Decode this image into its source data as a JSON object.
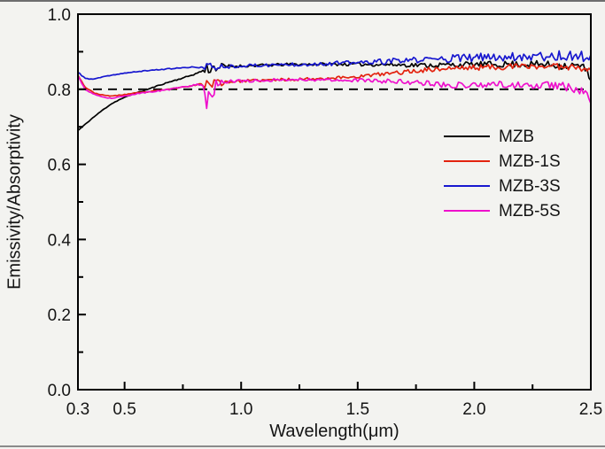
{
  "figure": {
    "background": "#f3f3f0",
    "frame_color": "#000000",
    "tick_label_color": "#141414"
  },
  "chart_data": {
    "type": "line",
    "title": "",
    "xlabel": "Wavelength(μm)",
    "ylabel": "Emissivity/Absorptivity",
    "xlim": [
      0.3,
      2.5
    ],
    "ylim": [
      0.0,
      1.0
    ],
    "grid": false,
    "legend_position": "middle-right",
    "x_ticks": {
      "major": [
        0.5,
        1.0,
        1.5,
        2.0,
        2.5
      ],
      "minor": [
        0.75,
        1.25,
        1.75,
        2.25
      ],
      "labels": [
        [
          0.3,
          "0.3"
        ],
        [
          0.5,
          "0.5"
        ],
        [
          1.0,
          "1.0"
        ],
        [
          1.5,
          "1.5"
        ],
        [
          2.0,
          "2.0"
        ],
        [
          2.5,
          "2.5"
        ]
      ]
    },
    "y_ticks": {
      "major": [
        0.0,
        0.2,
        0.4,
        0.6,
        0.8,
        1.0
      ],
      "minor": [
        0.1,
        0.3,
        0.5,
        0.7,
        0.9
      ],
      "labels": [
        [
          0.0,
          "0.0"
        ],
        [
          0.2,
          "0.2"
        ],
        [
          0.4,
          "0.4"
        ],
        [
          0.6,
          "0.6"
        ],
        [
          0.8,
          "0.8"
        ],
        [
          1.0,
          "1.0"
        ]
      ]
    },
    "reference_line": {
      "y": 0.8,
      "style": "dashed",
      "color": "#000000"
    },
    "series": [
      {
        "name": "MZB",
        "color": "#000000",
        "seed": 11,
        "base": [
          [
            0.3,
            0.69
          ],
          [
            0.33,
            0.706
          ],
          [
            0.36,
            0.722
          ],
          [
            0.4,
            0.742
          ],
          [
            0.44,
            0.76
          ],
          [
            0.48,
            0.773
          ],
          [
            0.52,
            0.783
          ],
          [
            0.56,
            0.792
          ],
          [
            0.6,
            0.8
          ],
          [
            0.65,
            0.811
          ],
          [
            0.7,
            0.821
          ],
          [
            0.75,
            0.83
          ],
          [
            0.8,
            0.84
          ],
          [
            0.83,
            0.848
          ],
          [
            0.86,
            0.856
          ],
          [
            0.9,
            0.859
          ],
          [
            1.0,
            0.862
          ],
          [
            1.1,
            0.864
          ],
          [
            1.2,
            0.866
          ],
          [
            1.4,
            0.867
          ],
          [
            1.6,
            0.866
          ],
          [
            1.8,
            0.864
          ],
          [
            2.0,
            0.866
          ],
          [
            2.2,
            0.867
          ],
          [
            2.3,
            0.866
          ],
          [
            2.4,
            0.863
          ],
          [
            2.45,
            0.862
          ],
          [
            2.48,
            0.852
          ],
          [
            2.5,
            0.833
          ]
        ],
        "noise": [
          [
            0.3,
            0.0008
          ],
          [
            0.8,
            0.0015
          ],
          [
            0.832,
            0.002
          ],
          [
            0.845,
            0.022
          ],
          [
            0.87,
            0.014
          ],
          [
            0.92,
            0.01
          ],
          [
            0.96,
            0.0035
          ],
          [
            1.3,
            0.0035
          ],
          [
            1.6,
            0.005
          ],
          [
            1.9,
            0.007
          ],
          [
            2.2,
            0.009
          ],
          [
            2.4,
            0.011
          ],
          [
            2.5,
            0.013
          ]
        ]
      },
      {
        "name": "MZB-1S",
        "color": "#e3230f",
        "seed": 23,
        "base": [
          [
            0.3,
            0.838
          ],
          [
            0.33,
            0.806
          ],
          [
            0.37,
            0.79
          ],
          [
            0.41,
            0.784
          ],
          [
            0.45,
            0.782
          ],
          [
            0.5,
            0.786
          ],
          [
            0.55,
            0.79
          ],
          [
            0.6,
            0.793
          ],
          [
            0.65,
            0.797
          ],
          [
            0.7,
            0.801
          ],
          [
            0.75,
            0.806
          ],
          [
            0.8,
            0.811
          ],
          [
            0.83,
            0.814
          ],
          [
            0.9,
            0.818
          ],
          [
            1.0,
            0.822
          ],
          [
            1.2,
            0.826
          ],
          [
            1.4,
            0.83
          ],
          [
            1.5,
            0.834
          ],
          [
            1.6,
            0.84
          ],
          [
            1.7,
            0.846
          ],
          [
            1.8,
            0.852
          ],
          [
            1.9,
            0.856
          ],
          [
            2.0,
            0.858
          ],
          [
            2.2,
            0.861
          ],
          [
            2.4,
            0.861
          ],
          [
            2.5,
            0.856
          ]
        ],
        "noise": [
          [
            0.3,
            0.0008
          ],
          [
            0.8,
            0.0015
          ],
          [
            0.832,
            0.002
          ],
          [
            0.845,
            0.018
          ],
          [
            0.87,
            0.013
          ],
          [
            0.92,
            0.009
          ],
          [
            0.96,
            0.0035
          ],
          [
            1.3,
            0.004
          ],
          [
            1.6,
            0.005
          ],
          [
            1.9,
            0.007
          ],
          [
            2.2,
            0.008
          ],
          [
            2.5,
            0.01
          ]
        ]
      },
      {
        "name": "MZB-3S",
        "color": "#1717cf",
        "seed": 37,
        "base": [
          [
            0.3,
            0.845
          ],
          [
            0.33,
            0.83
          ],
          [
            0.36,
            0.826
          ],
          [
            0.4,
            0.832
          ],
          [
            0.45,
            0.838
          ],
          [
            0.5,
            0.843
          ],
          [
            0.6,
            0.85
          ],
          [
            0.7,
            0.855
          ],
          [
            0.8,
            0.859
          ],
          [
            0.85,
            0.858
          ],
          [
            0.9,
            0.86
          ],
          [
            1.0,
            0.862
          ],
          [
            1.2,
            0.866
          ],
          [
            1.4,
            0.869
          ],
          [
            1.5,
            0.871
          ],
          [
            1.6,
            0.873
          ],
          [
            1.7,
            0.876
          ],
          [
            1.8,
            0.879
          ],
          [
            1.9,
            0.882
          ],
          [
            2.0,
            0.884
          ],
          [
            2.1,
            0.886
          ],
          [
            2.2,
            0.888
          ],
          [
            2.3,
            0.889
          ],
          [
            2.4,
            0.889
          ],
          [
            2.5,
            0.886
          ]
        ],
        "noise": [
          [
            0.3,
            0.0012
          ],
          [
            0.45,
            0.0008
          ],
          [
            0.8,
            0.0015
          ],
          [
            0.832,
            0.002
          ],
          [
            0.845,
            0.016
          ],
          [
            0.87,
            0.012
          ],
          [
            0.92,
            0.008
          ],
          [
            0.96,
            0.004
          ],
          [
            1.2,
            0.005
          ],
          [
            1.5,
            0.0065
          ],
          [
            1.8,
            0.009
          ],
          [
            2.1,
            0.012
          ],
          [
            2.35,
            0.014
          ],
          [
            2.5,
            0.014
          ]
        ]
      },
      {
        "name": "MZB-5S",
        "color": "#ee10cc",
        "seed": 53,
        "base": [
          [
            0.3,
            0.836
          ],
          [
            0.33,
            0.8
          ],
          [
            0.37,
            0.786
          ],
          [
            0.41,
            0.778
          ],
          [
            0.45,
            0.776
          ],
          [
            0.5,
            0.782
          ],
          [
            0.55,
            0.788
          ],
          [
            0.6,
            0.792
          ],
          [
            0.65,
            0.796
          ],
          [
            0.7,
            0.8
          ],
          [
            0.75,
            0.806
          ],
          [
            0.8,
            0.811
          ],
          [
            0.835,
            0.814
          ],
          [
            0.85,
            0.758
          ],
          [
            0.862,
            0.812
          ],
          [
            0.876,
            0.78
          ],
          [
            0.89,
            0.818
          ],
          [
            0.95,
            0.82
          ],
          [
            1.0,
            0.822
          ],
          [
            1.2,
            0.826
          ],
          [
            1.3,
            0.826
          ],
          [
            1.4,
            0.825
          ],
          [
            1.5,
            0.824
          ],
          [
            1.6,
            0.822
          ],
          [
            1.7,
            0.82
          ],
          [
            1.8,
            0.816
          ],
          [
            1.9,
            0.811
          ],
          [
            2.0,
            0.812
          ],
          [
            2.1,
            0.813
          ],
          [
            2.2,
            0.811
          ],
          [
            2.3,
            0.812
          ],
          [
            2.4,
            0.806
          ],
          [
            2.46,
            0.798
          ],
          [
            2.5,
            0.775
          ]
        ],
        "noise": [
          [
            0.3,
            0.0008
          ],
          [
            0.8,
            0.002
          ],
          [
            0.832,
            0.003
          ],
          [
            0.845,
            0.028
          ],
          [
            0.87,
            0.02
          ],
          [
            0.92,
            0.01
          ],
          [
            0.96,
            0.004
          ],
          [
            1.4,
            0.004
          ],
          [
            1.7,
            0.006
          ],
          [
            1.9,
            0.008
          ],
          [
            2.1,
            0.009
          ],
          [
            2.3,
            0.01
          ],
          [
            2.42,
            0.012
          ],
          [
            2.5,
            0.013
          ]
        ]
      }
    ]
  }
}
